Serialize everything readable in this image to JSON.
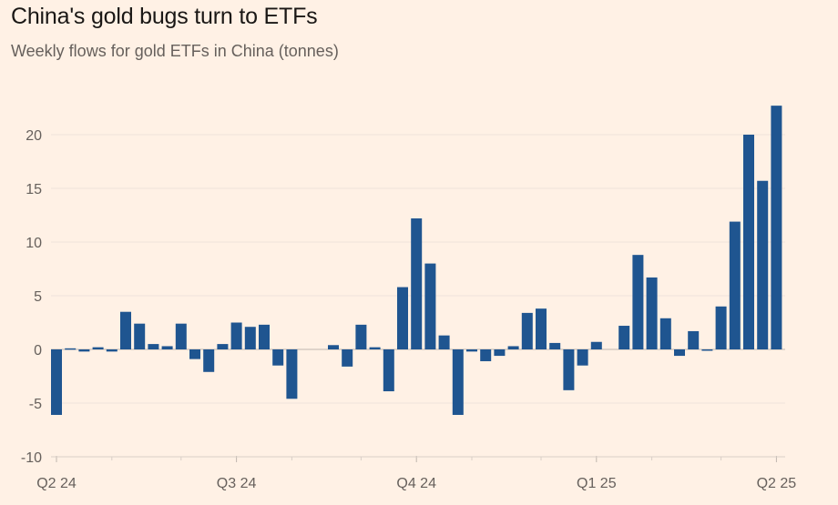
{
  "header": {
    "title": "China's gold bugs turn to ETFs",
    "subtitle": "Weekly flows for gold ETFs in China (tonnes)"
  },
  "colors": {
    "background": "#fff1e5",
    "bar": "#1f5590",
    "grid": "#efe4da",
    "zero_line": "#bfb6ae",
    "text": "#66605c"
  },
  "chart_data": {
    "type": "bar",
    "title": "China's gold bugs turn to ETFs",
    "subtitle": "Weekly flows for gold ETFs in China (tonnes)",
    "xlabel": "",
    "ylabel": "",
    "ylim": [
      -10,
      23
    ],
    "yticks": [
      -10,
      -5,
      0,
      5,
      10,
      15,
      20
    ],
    "grid": true,
    "x_tick_labels": [
      "Q2 24",
      "Q3 24",
      "Q4 24",
      "Q1 25",
      "Q2 25"
    ],
    "x_tick_label_weeks": [
      0,
      13,
      26,
      39,
      52
    ],
    "week_count": 53,
    "values": [
      -6.1,
      0.1,
      -0.2,
      0.2,
      -0.2,
      3.5,
      2.4,
      0.5,
      0.3,
      2.4,
      -0.9,
      -2.1,
      0.5,
      2.5,
      2.1,
      2.3,
      -1.5,
      -4.6,
      0,
      0,
      0.4,
      -1.6,
      2.3,
      0.2,
      -3.9,
      5.8,
      12.2,
      8.0,
      1.3,
      -6.1,
      -0.2,
      -1.1,
      -0.6,
      0.3,
      3.4,
      3.8,
      0.6,
      -3.8,
      -1.5,
      0.7,
      0,
      2.2,
      8.8,
      6.7,
      2.9,
      -0.6,
      1.7,
      -0.1,
      4.0,
      11.9,
      20.0,
      15.7,
      22.7
    ]
  }
}
